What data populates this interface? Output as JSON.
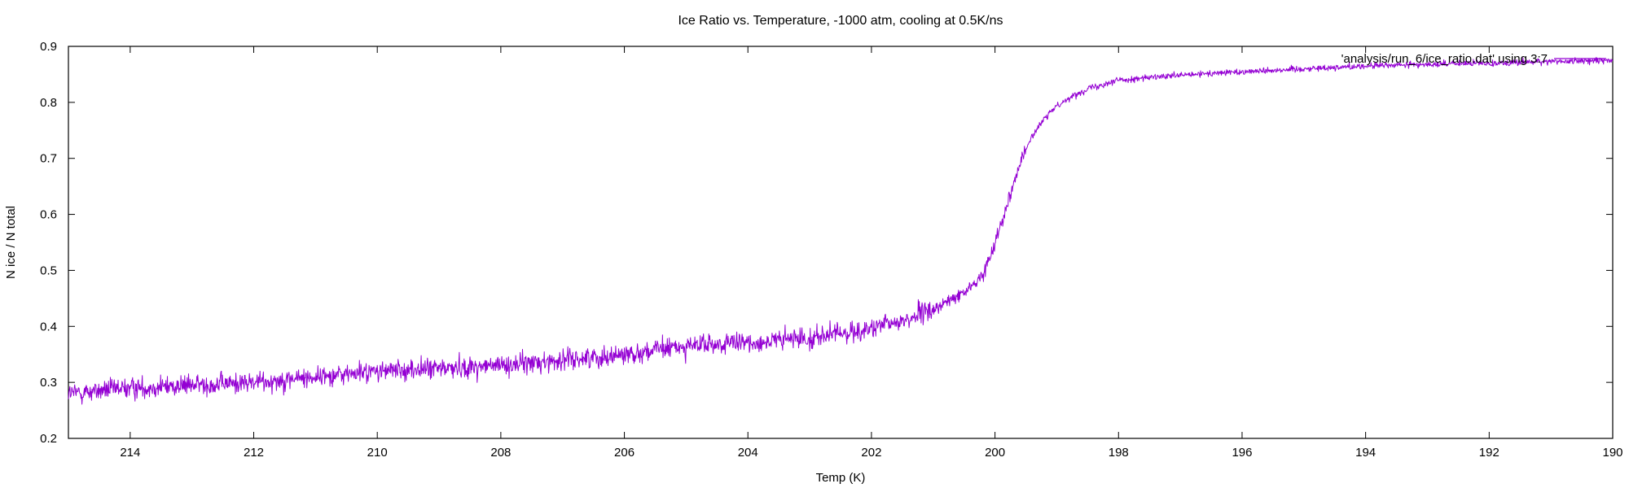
{
  "chart_data": {
    "type": "line",
    "title": "Ice Ratio vs. Temperature, -1000 atm, cooling at 0.5K/ns",
    "xlabel": "Temp (K)",
    "ylabel": "N ice / N total",
    "xlim": [
      215,
      190
    ],
    "ylim": [
      0.2,
      0.9
    ],
    "x_reversed": true,
    "xticks": [
      "214",
      "212",
      "210",
      "208",
      "206",
      "204",
      "202",
      "200",
      "198",
      "196",
      "194",
      "192",
      "190"
    ],
    "yticks": [
      "0.2",
      "0.3",
      "0.4",
      "0.5",
      "0.6",
      "0.7",
      "0.8",
      "0.9"
    ],
    "grid": false,
    "legend_position": "top-right",
    "series": [
      {
        "name": "'analysis/run_6/ice_ratio.dat' using 3:7",
        "color": "#9400d3",
        "x": [
          215,
          214,
          213,
          212,
          211,
          210,
          209,
          208,
          207,
          206,
          205,
          204,
          203,
          202,
          201.5,
          201,
          200.5,
          200.2,
          200,
          199.8,
          199.6,
          199.4,
          199.2,
          199,
          198.5,
          198,
          197,
          196,
          195,
          194,
          193,
          192,
          191,
          190
        ],
        "y": [
          0.28,
          0.29,
          0.295,
          0.3,
          0.31,
          0.32,
          0.325,
          0.33,
          0.34,
          0.35,
          0.365,
          0.37,
          0.38,
          0.395,
          0.41,
          0.43,
          0.46,
          0.49,
          0.55,
          0.62,
          0.69,
          0.74,
          0.77,
          0.795,
          0.825,
          0.84,
          0.848,
          0.855,
          0.86,
          0.865,
          0.868,
          0.87,
          0.873,
          0.875
        ]
      }
    ]
  }
}
